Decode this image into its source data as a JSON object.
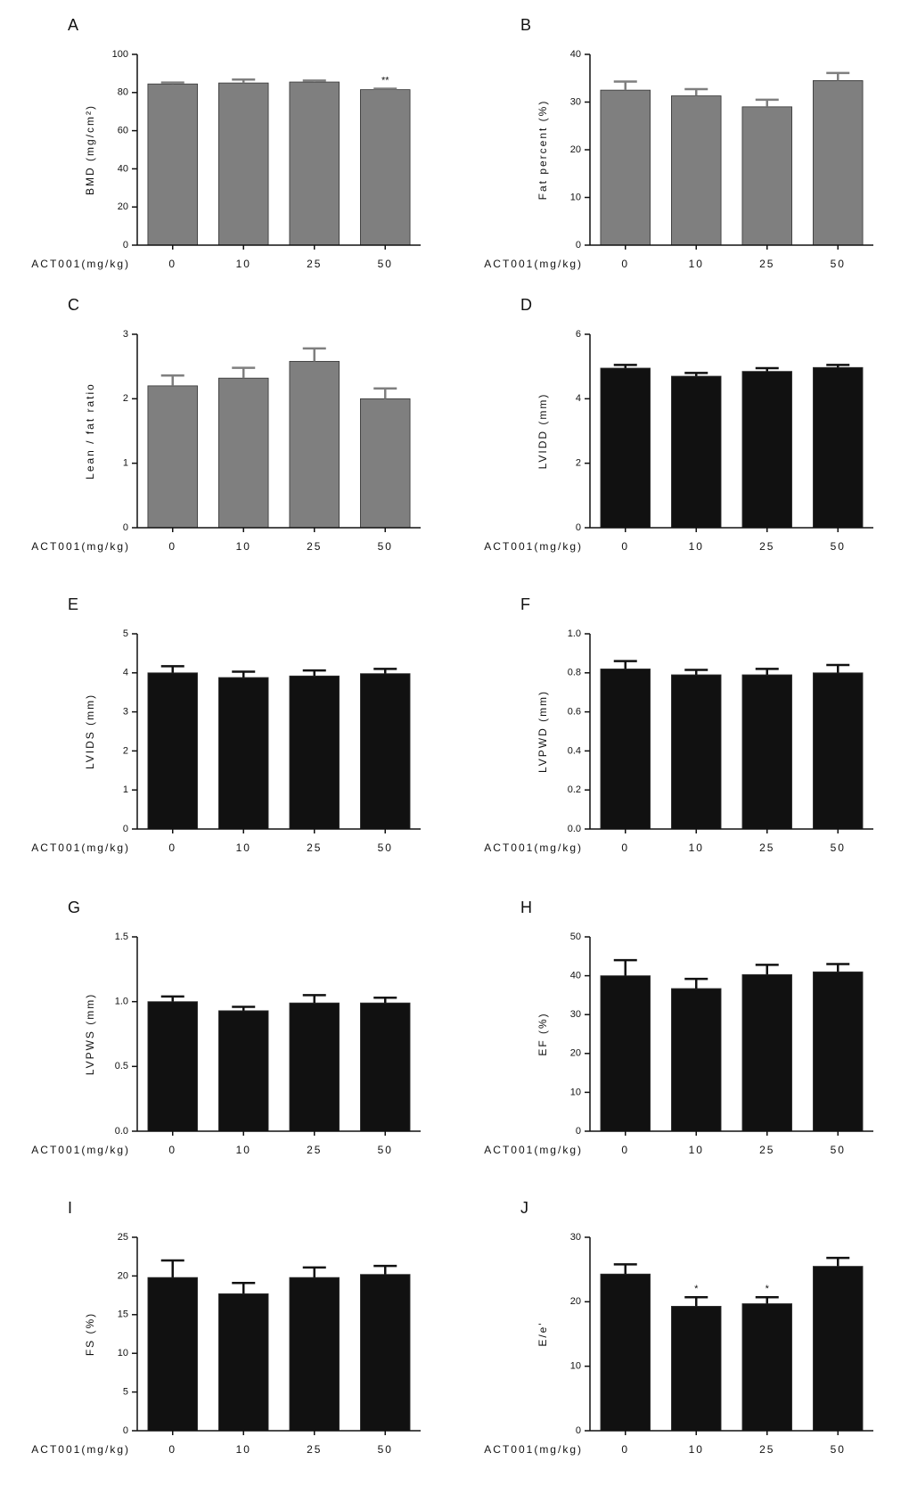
{
  "chart_data": [
    {
      "type": "bar",
      "panel_label": "A",
      "ylabel": "BMD (mg/cm²)",
      "xlabel": "ACT001(mg/kg)",
      "categories": [
        "0",
        "10",
        "25",
        "50"
      ],
      "values": [
        84.5,
        85,
        85.5,
        81.5
      ],
      "errors": [
        0.7,
        1.8,
        0.8,
        0.5
      ],
      "ylim": [
        0,
        100
      ],
      "yticks": [
        0,
        20,
        40,
        60,
        80,
        100
      ],
      "color": "#7f7f7f",
      "annotations": [
        {
          "category": "50",
          "text": "**"
        }
      ]
    },
    {
      "type": "bar",
      "panel_label": "B",
      "ylabel": "Fat percent (%)",
      "xlabel": "ACT001(mg/kg)",
      "categories": [
        "0",
        "10",
        "25",
        "50"
      ],
      "values": [
        32.5,
        31.3,
        29,
        34.5
      ],
      "errors": [
        1.8,
        1.4,
        1.5,
        1.6
      ],
      "ylim": [
        0,
        40
      ],
      "yticks": [
        0,
        10,
        20,
        30,
        40
      ],
      "color": "#7f7f7f"
    },
    {
      "type": "bar",
      "panel_label": "C",
      "ylabel": "Lean / fat ratio",
      "xlabel": "ACT001(mg/kg)",
      "categories": [
        "0",
        "10",
        "25",
        "50"
      ],
      "values": [
        2.2,
        2.32,
        2.58,
        2.0
      ],
      "errors": [
        0.16,
        0.16,
        0.2,
        0.16
      ],
      "ylim": [
        0,
        3
      ],
      "yticks": [
        0,
        1,
        2,
        3
      ],
      "color": "#7f7f7f"
    },
    {
      "type": "bar",
      "panel_label": "D",
      "ylabel": "LVIDD (mm)",
      "xlabel": "ACT001(mg/kg)",
      "categories": [
        "0",
        "10",
        "25",
        "50"
      ],
      "values": [
        4.95,
        4.7,
        4.85,
        4.97
      ],
      "errors": [
        0.1,
        0.1,
        0.1,
        0.08
      ],
      "ylim": [
        0,
        6
      ],
      "yticks": [
        0,
        2,
        4,
        6
      ],
      "color": "#111111"
    },
    {
      "type": "bar",
      "panel_label": "E",
      "ylabel": "LVIDS (mm)",
      "xlabel": "ACT001(mg/kg)",
      "categories": [
        "0",
        "10",
        "25",
        "50"
      ],
      "values": [
        4.0,
        3.88,
        3.92,
        3.98
      ],
      "errors": [
        0.17,
        0.15,
        0.14,
        0.12
      ],
      "ylim": [
        0,
        5
      ],
      "yticks": [
        0,
        1,
        2,
        3,
        4,
        5
      ],
      "color": "#111111"
    },
    {
      "type": "bar",
      "panel_label": "F",
      "ylabel": "LVPWD (mm)",
      "xlabel": "ACT001(mg/kg)",
      "categories": [
        "0",
        "10",
        "25",
        "50"
      ],
      "values": [
        0.82,
        0.79,
        0.79,
        0.8
      ],
      "errors": [
        0.04,
        0.025,
        0.03,
        0.04
      ],
      "ylim": [
        0,
        1
      ],
      "yticks": [
        {
          "value": 0,
          "label": "0.0"
        },
        0.2,
        0.4,
        0.6,
        0.8,
        {
          "value": 1,
          "label": "1.0"
        }
      ],
      "color": "#111111"
    },
    {
      "type": "bar",
      "panel_label": "G",
      "ylabel": "LVPWS (mm)",
      "xlabel": "ACT001(mg/kg)",
      "categories": [
        "0",
        "10",
        "25",
        "50"
      ],
      "values": [
        1.0,
        0.93,
        0.99,
        0.99
      ],
      "errors": [
        0.04,
        0.03,
        0.06,
        0.04
      ],
      "ylim": [
        0,
        1.5
      ],
      "yticks": [
        {
          "value": 0,
          "label": "0.0"
        },
        0.5,
        {
          "value": 1,
          "label": "1.0"
        },
        1.5
      ],
      "color": "#111111"
    },
    {
      "type": "bar",
      "panel_label": "H",
      "ylabel": "EF (%)",
      "xlabel": "ACT001(mg/kg)",
      "categories": [
        "0",
        "10",
        "25",
        "50"
      ],
      "values": [
        40,
        36.7,
        40.3,
        41
      ],
      "errors": [
        4,
        2.5,
        2.5,
        2
      ],
      "ylim": [
        0,
        50
      ],
      "yticks": [
        0,
        10,
        20,
        30,
        40,
        50
      ],
      "color": "#111111"
    },
    {
      "type": "bar",
      "panel_label": "I",
      "ylabel": "FS (%)",
      "xlabel": "ACT001(mg/kg)",
      "categories": [
        "0",
        "10",
        "25",
        "50"
      ],
      "values": [
        19.8,
        17.7,
        19.8,
        20.2
      ],
      "errors": [
        2.2,
        1.4,
        1.3,
        1.1
      ],
      "ylim": [
        0,
        25
      ],
      "yticks": [
        0,
        5,
        10,
        15,
        20,
        25
      ],
      "color": "#111111"
    },
    {
      "type": "bar",
      "panel_label": "J",
      "ylabel": "E/e'",
      "xlabel": "ACT001(mg/kg)",
      "categories": [
        "0",
        "10",
        "25",
        "50"
      ],
      "values": [
        24.3,
        19.3,
        19.7,
        25.5
      ],
      "errors": [
        1.5,
        1.4,
        1.0,
        1.3
      ],
      "ylim": [
        0,
        30
      ],
      "yticks": [
        0,
        10,
        20,
        30
      ],
      "color": "#111111",
      "annotations": [
        {
          "category": "10",
          "text": "*"
        },
        {
          "category": "25",
          "text": "*"
        }
      ]
    }
  ]
}
